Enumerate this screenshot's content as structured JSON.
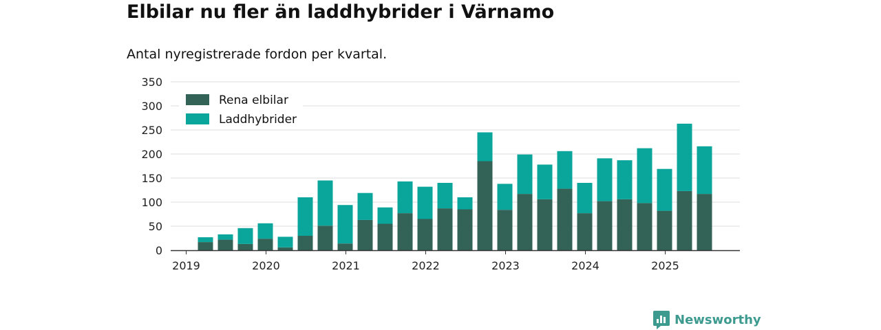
{
  "title": "Elbilar nu fler än laddhybrider i Värnamo",
  "subtitle": "Antal nyregistrerade fordon per kvartal.",
  "brand": "Newsworthy",
  "colors": {
    "elbil": "#336357",
    "hybrid": "#0aa69b",
    "grid": "#dcdcdc",
    "axis": "#333333",
    "brand": "#3c9a8e"
  },
  "chart_data": {
    "type": "bar",
    "stacked": true,
    "title": "Elbilar nu fler än laddhybrider i Värnamo",
    "subtitle": "Antal nyregistrerade fordon per kvartal.",
    "xlabel": "",
    "ylabel": "",
    "ylim": [
      0,
      350
    ],
    "yticks": [
      0,
      50,
      100,
      150,
      200,
      250,
      300,
      350
    ],
    "grid": true,
    "legend_position": "top-left",
    "year_ticks": [
      "2019",
      "2020",
      "2021",
      "2022",
      "2023",
      "2024",
      "2025"
    ],
    "categories": [
      "2019Q2",
      "2019Q3",
      "2019Q4",
      "2020Q1",
      "2020Q2",
      "2020Q3",
      "2020Q4",
      "2021Q1",
      "2021Q2",
      "2021Q3",
      "2021Q4",
      "2022Q1",
      "2022Q2",
      "2022Q3",
      "2022Q4",
      "2023Q1",
      "2023Q2",
      "2023Q3",
      "2023Q4",
      "2024Q1",
      "2024Q2",
      "2024Q3",
      "2024Q4",
      "2025Q1",
      "2025Q2",
      "2025Q3"
    ],
    "series": [
      {
        "name": "Rena elbilar",
        "values": [
          17,
          22,
          13,
          24,
          6,
          30,
          51,
          14,
          63,
          55,
          77,
          65,
          87,
          85,
          185,
          84,
          117,
          106,
          128,
          77,
          102,
          106,
          98,
          82,
          123,
          117
        ]
      },
      {
        "name": "Laddhybrider",
        "values": [
          10,
          11,
          33,
          32,
          22,
          80,
          94,
          80,
          56,
          34,
          66,
          67,
          53,
          25,
          60,
          54,
          82,
          72,
          78,
          63,
          89,
          81,
          114,
          87,
          140,
          99
        ]
      }
    ]
  }
}
